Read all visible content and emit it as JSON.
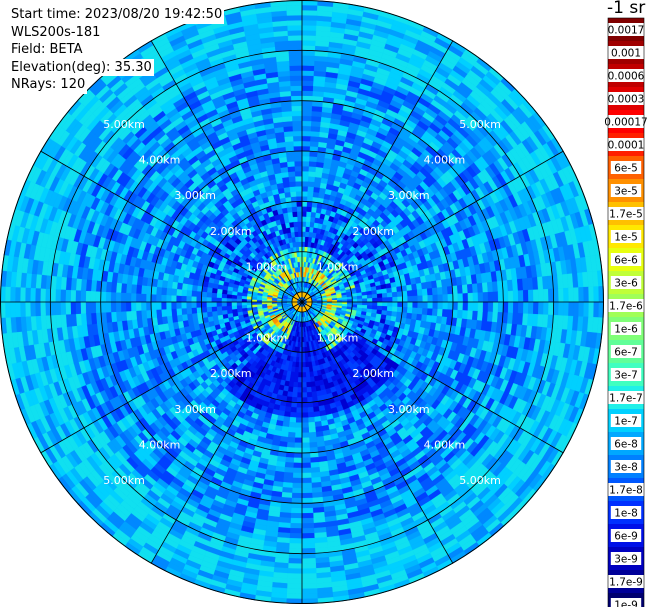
{
  "info": {
    "start_time": "Start time: 2023/08/20 19:42:50",
    "site": "WLS200s-181",
    "field": "Field: BETA",
    "elevation": "Elevation(deg): 35.30",
    "nrays": "NRays: 120"
  },
  "colorbar": {
    "units": "-1 sr",
    "labels": [
      "0.0017",
      "0.001",
      "0.0006",
      "0.0003",
      "0.00017",
      "0.0001",
      "6e-5",
      "3e-5",
      "1.7e-5",
      "1e-5",
      "6e-6",
      "3e-6",
      "1.7e-6",
      "1e-6",
      "6e-7",
      "3e-7",
      "1.7e-7",
      "1e-7",
      "6e-8",
      "3e-8",
      "1.7e-8",
      "1e-8",
      "6e-9",
      "3e-9",
      "1.7e-9",
      "1e-9"
    ],
    "colors": [
      "#800000",
      "#a00000",
      "#c00000",
      "#e00000",
      "#ff0000",
      "#ff2000",
      "#ff6000",
      "#ff9000",
      "#ffc000",
      "#ffe800",
      "#e8ff10",
      "#c0ff38",
      "#a0ff58",
      "#80ff78",
      "#60ff98",
      "#40ffc0",
      "#20f0e8",
      "#00d0ff",
      "#00a8ff",
      "#0080ff",
      "#0058ff",
      "#0030ff",
      "#0010e8",
      "#0000c0",
      "#000098",
      "#000070"
    ]
  },
  "chart_data": {
    "type": "heatmap",
    "projection": "polar (PPI scan)",
    "field": "BETA",
    "rays": 120,
    "max_range_km": 6,
    "ring_labels": [
      "1.00km",
      "2.00km",
      "3.00km",
      "4.00km",
      "5.00km"
    ],
    "ring_values_km": [
      1,
      2,
      3,
      4,
      5
    ],
    "spoke_angles_deg": [
      0,
      30,
      60,
      90,
      120,
      150,
      180,
      210,
      240,
      270,
      300,
      330
    ],
    "background_level": "1e-8 to 3e-8",
    "enhanced_region": "within ~1 km of center, values up to ~1e-5",
    "colorscale": "jet, 1e-9 to 0.0017"
  }
}
